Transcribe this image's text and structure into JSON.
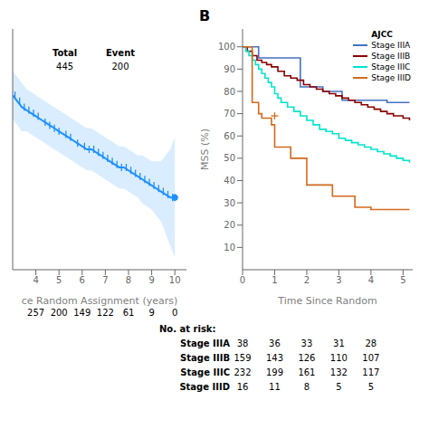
{
  "chart_data": [
    {
      "type": "line",
      "x_label": "ce Random Assignment (years)",
      "xlim": [
        3.0,
        10.5
      ],
      "ylim": [
        50,
        90
      ],
      "xticks": [
        4,
        5,
        6,
        7,
        8,
        9,
        10
      ],
      "tick_labels": "x",
      "grid": false,
      "color": "#1E90FF",
      "ci_color": "#ADD8FF",
      "x": [
        3.0,
        3.2,
        3.4,
        3.6,
        3.8,
        4.0,
        4.2,
        4.4,
        4.6,
        4.8,
        5.0,
        5.2,
        5.4,
        5.6,
        5.8,
        6.0,
        6.2,
        6.4,
        6.6,
        6.8,
        7.0,
        7.2,
        7.4,
        7.6,
        7.8,
        8.0,
        8.2,
        8.4,
        8.6,
        8.8,
        9.0,
        9.2,
        9.4,
        9.6,
        9.8,
        10.0
      ],
      "values": [
        79,
        78,
        77,
        76.5,
        76,
        75.5,
        75,
        74.5,
        74,
        73.5,
        73,
        72.5,
        72,
        71.5,
        71,
        70.5,
        70,
        70,
        69.5,
        69,
        68.5,
        68,
        67.5,
        67,
        67,
        66.5,
        66,
        65.5,
        65,
        64.5,
        64,
        63.5,
        63,
        62.5,
        62,
        62
      ],
      "ci_upper": [
        83,
        82,
        81,
        80,
        79.5,
        79,
        78.5,
        78,
        77.5,
        77,
        76.5,
        76,
        75.5,
        75,
        74.5,
        74,
        73.5,
        73.5,
        73,
        72.5,
        72,
        71.5,
        71,
        70.5,
        70.5,
        70,
        69.5,
        69,
        69,
        68.5,
        68,
        68,
        68,
        69,
        70,
        72
      ],
      "ci_lower": [
        75,
        74,
        73,
        73,
        72.5,
        72,
        71.5,
        71,
        70.5,
        70,
        69.5,
        69,
        68.5,
        68,
        67.5,
        67,
        66.5,
        66.5,
        66,
        65.5,
        65,
        64.5,
        64,
        63.5,
        63.5,
        63,
        62.5,
        62,
        61,
        60.5,
        60,
        59,
        58,
        56,
        54,
        52
      ],
      "censored": {
        "x": [
          3.1,
          3.3,
          3.5,
          3.7,
          3.9,
          4.1,
          4.4,
          4.6,
          4.8,
          5.0,
          5.3,
          5.5,
          5.8,
          6.1,
          6.3,
          6.5,
          6.7,
          6.9,
          7.1,
          7.3,
          7.5,
          7.7,
          7.9,
          8.1,
          8.3,
          8.5,
          8.7,
          8.9,
          9.1,
          9.3,
          9.5,
          9.7,
          9.9,
          10.0
        ],
        "values": [
          79,
          78,
          77,
          76.5,
          76,
          75.5,
          74.5,
          74,
          73.5,
          73,
          72.5,
          72,
          71,
          70.5,
          70,
          70,
          69.5,
          69,
          68.5,
          68,
          67.5,
          67,
          67,
          66.5,
          66,
          65.5,
          65,
          64.5,
          64,
          63.5,
          63,
          62.5,
          62,
          62
        ]
      },
      "end_point": {
        "x": 10.0,
        "y": 62
      },
      "table": {
        "headers": [
          "Total",
          "Event"
        ],
        "values": [
          445,
          200
        ]
      },
      "at_risk": {
        "x": [
          4,
          5,
          6,
          7,
          8,
          9,
          10
        ],
        "values": [
          257,
          200,
          149,
          122,
          61,
          9,
          0
        ]
      }
    },
    {
      "type": "line",
      "title": "B",
      "x_label": "Time Since Random",
      "y_label": "MSS (%)",
      "xlim": [
        0,
        5.3
      ],
      "ylim": [
        0,
        108
      ],
      "xticks": [
        0,
        1,
        2,
        3,
        4,
        5
      ],
      "yticks": [
        10,
        20,
        30,
        40,
        50,
        60,
        70,
        80,
        90,
        100
      ],
      "line_style": "step",
      "grid": false,
      "legend": "upper right",
      "legend_title": "AJCC",
      "series": [
        {
          "name": "Stage IIIA",
          "color": "#4472C4",
          "x": [
            0,
            0.3,
            0.5,
            0.7,
            0.9,
            1.0,
            1.8,
            2.5,
            3.1,
            4.0,
            4.5,
            5.2
          ],
          "values": [
            100,
            100,
            95,
            95,
            95,
            95,
            82,
            80,
            76,
            76,
            75,
            75
          ]
        },
        {
          "name": "Stage IIIB",
          "color": "#8B0000",
          "x": [
            0,
            0.15,
            0.3,
            0.45,
            0.6,
            0.75,
            0.9,
            1.1,
            1.3,
            1.5,
            1.7,
            1.9,
            2.1,
            2.3,
            2.5,
            2.7,
            2.9,
            3.1,
            3.3,
            3.5,
            3.7,
            3.9,
            4.1,
            4.3,
            4.5,
            4.7,
            5.0,
            5.2
          ],
          "values": [
            100,
            98,
            96,
            94,
            93,
            92,
            91,
            89,
            87,
            86,
            85,
            83,
            82,
            81,
            80,
            79,
            78,
            77,
            76,
            75,
            74,
            73,
            72,
            71,
            70,
            69,
            68,
            67
          ]
        },
        {
          "name": "Stage IIIC",
          "color": "#00E5CC",
          "x": [
            0,
            0.1,
            0.2,
            0.3,
            0.4,
            0.5,
            0.6,
            0.7,
            0.8,
            0.9,
            1.0,
            1.1,
            1.2,
            1.4,
            1.6,
            1.8,
            2.0,
            2.2,
            2.4,
            2.6,
            2.8,
            3.0,
            3.2,
            3.4,
            3.6,
            3.8,
            4.0,
            4.2,
            4.4,
            4.6,
            4.8,
            5.0,
            5.2
          ],
          "values": [
            100,
            98,
            96,
            94,
            92,
            90,
            88,
            86,
            84,
            82,
            79,
            77,
            75,
            73,
            71,
            69,
            67,
            65,
            63,
            62,
            61,
            59,
            58,
            57,
            56,
            55,
            54,
            53,
            52,
            51,
            50,
            49,
            48
          ]
        },
        {
          "name": "Stage IIID",
          "color": "#D2691E",
          "x": [
            0,
            0.3,
            0.3,
            0.5,
            0.5,
            0.6,
            0.6,
            0.9,
            0.9,
            1.0,
            1.0,
            1.5,
            1.5,
            2.0,
            2.0,
            2.8,
            2.8,
            3.5,
            3.5,
            4.0,
            4.0,
            5.2
          ],
          "values": [
            100,
            100,
            75,
            75,
            70,
            70,
            68,
            68,
            65,
            65,
            55,
            55,
            50,
            50,
            38,
            38,
            33,
            33,
            28,
            28,
            27,
            27
          ],
          "censored": {
            "x": [
              1.0
            ],
            "values": [
              69
            ]
          }
        }
      ],
      "at_risk": {
        "title": "No. at risk:",
        "x": [
          0,
          1,
          2,
          3,
          4
        ],
        "rows": [
          {
            "label": "Stage IIIA",
            "values": [
              38,
              36,
              33,
              31,
              28
            ]
          },
          {
            "label": "Stage IIIB",
            "values": [
              159,
              143,
              126,
              110,
              107
            ]
          },
          {
            "label": "Stage IIIC",
            "values": [
              232,
              199,
              161,
              132,
              117
            ]
          },
          {
            "label": "Stage IIID",
            "values": [
              16,
              11,
              8,
              5,
              5
            ]
          }
        ]
      }
    }
  ]
}
